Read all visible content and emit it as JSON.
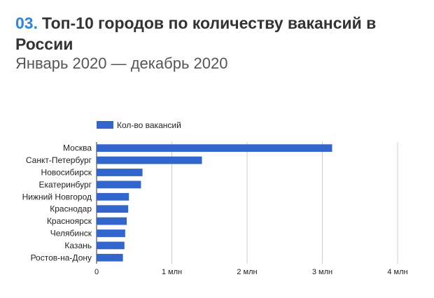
{
  "header": {
    "number": "03.",
    "title": "Топ-10 городов по количеству вакансий в России",
    "subtitle": "Январь 2020 — декабрь 2020"
  },
  "colors": {
    "accent": "#2f86d6",
    "bar": "#3366cc",
    "grid": "#cccccc"
  },
  "chart_data": {
    "type": "bar",
    "orientation": "horizontal",
    "categories": [
      "Москва",
      "Санкт-Петербург",
      "Новосибирск",
      "Екатеринбург",
      "Нижний Новгород",
      "Краснодар",
      "Красноярск",
      "Челябинск",
      "Казань",
      "Ростов-на-Дону"
    ],
    "series": [
      {
        "name": "Кол-во вакансий",
        "values": [
          3130000,
          1400000,
          610000,
          590000,
          430000,
          420000,
          400000,
          380000,
          370000,
          350000
        ]
      }
    ],
    "xlim": [
      0,
      4000000
    ],
    "x_ticks": [
      0,
      1000000,
      2000000,
      3000000,
      4000000
    ],
    "x_tick_labels": [
      "0",
      "1 млн",
      "2 млн",
      "3 млн",
      "4 млн"
    ],
    "grid": true,
    "legend_position": "top-left"
  }
}
